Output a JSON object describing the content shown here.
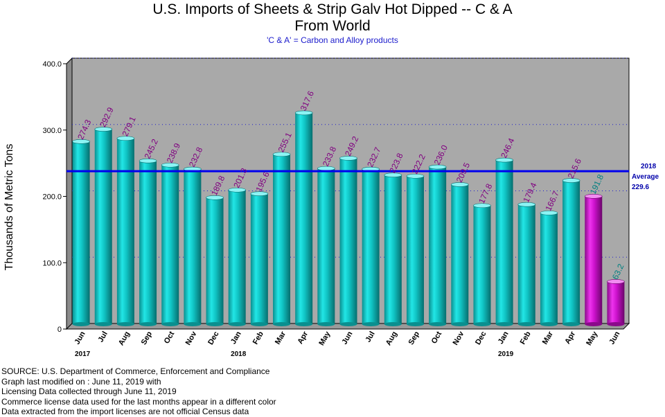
{
  "title_line1": "U.S. Imports of Sheets & Strip Galv Hot Dipped -- C & A",
  "title_line2": "From World",
  "subtitle": "'C & A' = Carbon and Alloy products",
  "avg_label": [
    "2018",
    "Average",
    "229.6"
  ],
  "source_lines": [
    "SOURCE: U.S. Department of Commerce, Enforcement and Compliance",
    "Graph last modified on : June 11, 2019      with",
    "Licensing Data collected through June 11, 2019",
    "Commerce license data used for the last months appear in a different color",
    "Data extracted from the import licenses are not official Census data"
  ],
  "colors": {
    "bar": "#10c4c4",
    "license_bar": "#cc11cc",
    "value_label": "#800080",
    "license_label": "#008080",
    "average_line": "#0000ee",
    "plot_bg": "#a9a9a9"
  },
  "chart_data": {
    "type": "bar",
    "title": "U.S. Imports of Sheets & Strip Galv Hot Dipped -- C & A From World",
    "ylabel": "Thousands of Metric Tons",
    "xlabel": "",
    "ylim": [
      0,
      400
    ],
    "yticks": [
      "0",
      "100.0",
      "200.0",
      "300.0",
      "400.0"
    ],
    "categories": [
      "Jun",
      "Jul",
      "Aug",
      "Sep",
      "Oct",
      "Nov",
      "Dec",
      "Jan",
      "Feb",
      "Mar",
      "Apr",
      "May",
      "Jun",
      "Jul",
      "Aug",
      "Sep",
      "Oct",
      "Nov",
      "Dec",
      "Jan",
      "Feb",
      "Mar",
      "Apr",
      "May",
      "Jun"
    ],
    "values": [
      274.3,
      292.9,
      279.1,
      245.2,
      238.9,
      232.8,
      189.8,
      201.3,
      195.6,
      255.1,
      317.6,
      233.8,
      249.2,
      232.7,
      223.8,
      222.2,
      236.0,
      209.5,
      177.8,
      246.4,
      179.4,
      166.7,
      215.6,
      191.8,
      63.2
    ],
    "value_labels": [
      "274.3",
      "292.9",
      "279.1",
      "245.2",
      "238.9",
      "232.8",
      "189.8",
      "201.3",
      "195.6",
      "255.1",
      "317.6",
      "233.8",
      "249.2",
      "232.7",
      "223.8",
      "222.2",
      "236.0",
      "209.5",
      "177.8",
      "246.4",
      "179.4",
      "166.7",
      "215.6",
      "191.8",
      "63.2"
    ],
    "license_data_flags": [
      false,
      false,
      false,
      false,
      false,
      false,
      false,
      false,
      false,
      false,
      false,
      false,
      false,
      false,
      false,
      false,
      false,
      false,
      false,
      false,
      false,
      false,
      false,
      true,
      true
    ],
    "years": [
      {
        "label": "2017",
        "index": 0
      },
      {
        "label": "2018",
        "index": 7
      },
      {
        "label": "2019",
        "index": 19
      }
    ],
    "average": 229.6,
    "grid": "horizontal dotted",
    "legend": "none"
  }
}
